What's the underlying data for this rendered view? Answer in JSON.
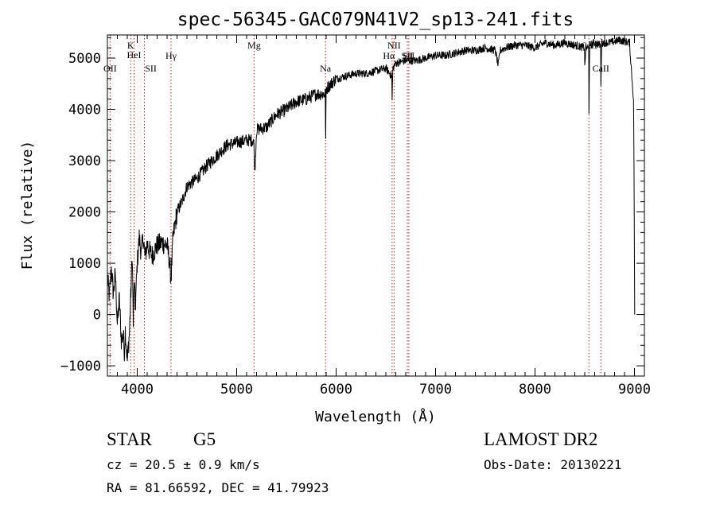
{
  "chart_data": {
    "type": "line",
    "title": "spec-56345-GAC079N41V2_sp13-241.fits",
    "xlabel": "Wavelength (Å)",
    "ylabel": "Flux (relative)",
    "xlim": [
      3700,
      9100
    ],
    "ylim": [
      -1200,
      5450
    ],
    "xticks": [
      4000,
      5000,
      6000,
      7000,
      8000,
      9000
    ],
    "yticks": [
      -1000,
      0,
      1000,
      2000,
      3000,
      4000,
      5000
    ],
    "spectrum_color": "#000000",
    "line_marker_color": "#b22222",
    "anchors": [
      [
        3700,
        700
      ],
      [
        3720,
        350
      ],
      [
        3740,
        900
      ],
      [
        3760,
        400
      ],
      [
        3780,
        800
      ],
      [
        3800,
        -200
      ],
      [
        3820,
        300
      ],
      [
        3840,
        -500
      ],
      [
        3860,
        -400
      ],
      [
        3870,
        -700
      ],
      [
        3880,
        -300
      ],
      [
        3900,
        -900
      ],
      [
        3920,
        -400
      ],
      [
        3940,
        600
      ],
      [
        3950,
        1200
      ],
      [
        3960,
        -200
      ],
      [
        3970,
        700
      ],
      [
        3980,
        100
      ],
      [
        4000,
        1000
      ],
      [
        4020,
        1500
      ],
      [
        4040,
        1200
      ],
      [
        4060,
        1500
      ],
      [
        4080,
        1100
      ],
      [
        4100,
        1400
      ],
      [
        4120,
        1250
      ],
      [
        4150,
        1150
      ],
      [
        4200,
        1350
      ],
      [
        4250,
        1400
      ],
      [
        4300,
        1350
      ],
      [
        4320,
        1100
      ],
      [
        4340,
        700
      ],
      [
        4360,
        1500
      ],
      [
        4400,
        2000
      ],
      [
        4450,
        2200
      ],
      [
        4500,
        2500
      ],
      [
        4600,
        2650
      ],
      [
        4700,
        2900
      ],
      [
        4800,
        3100
      ],
      [
        4900,
        3300
      ],
      [
        5000,
        3350
      ],
      [
        5100,
        3400
      ],
      [
        5170,
        3400
      ],
      [
        5183,
        2800
      ],
      [
        5200,
        3600
      ],
      [
        5300,
        3650
      ],
      [
        5400,
        3900
      ],
      [
        5500,
        4000
      ],
      [
        5600,
        4150
      ],
      [
        5700,
        4200
      ],
      [
        5800,
        4300
      ],
      [
        5890,
        4300
      ],
      [
        5895,
        3400
      ],
      [
        5900,
        4400
      ],
      [
        6000,
        4600
      ],
      [
        6100,
        4650
      ],
      [
        6200,
        4700
      ],
      [
        6300,
        4700
      ],
      [
        6400,
        4750
      ],
      [
        6500,
        4800
      ],
      [
        6560,
        4650
      ],
      [
        6563,
        4150
      ],
      [
        6570,
        4800
      ],
      [
        6600,
        4900
      ],
      [
        6700,
        4950
      ],
      [
        6800,
        4950
      ],
      [
        6900,
        5000
      ],
      [
        7000,
        5050
      ],
      [
        7100,
        5050
      ],
      [
        7200,
        5100
      ],
      [
        7300,
        5150
      ],
      [
        7400,
        5150
      ],
      [
        7500,
        5200
      ],
      [
        7600,
        5150
      ],
      [
        7630,
        4850
      ],
      [
        7650,
        5150
      ],
      [
        7700,
        5200
      ],
      [
        7800,
        5250
      ],
      [
        7900,
        5250
      ],
      [
        8000,
        5200
      ],
      [
        8100,
        5300
      ],
      [
        8200,
        5250
      ],
      [
        8300,
        5300
      ],
      [
        8400,
        5250
      ],
      [
        8498,
        5200
      ],
      [
        8500,
        4800
      ],
      [
        8510,
        5200
      ],
      [
        8540,
        5200
      ],
      [
        8542,
        3950
      ],
      [
        8550,
        5250
      ],
      [
        8600,
        5300
      ],
      [
        8660,
        5250
      ],
      [
        8662,
        4400
      ],
      [
        8670,
        5300
      ],
      [
        8750,
        5300
      ],
      [
        8850,
        5350
      ],
      [
        8950,
        5300
      ],
      [
        8990,
        4200
      ],
      [
        8995,
        3000
      ],
      [
        9000,
        1000
      ],
      [
        9002,
        0
      ]
    ],
    "lines": [
      {
        "label": "OII",
        "wavelength": 3727
      },
      {
        "label": "K",
        "wavelength": 3934
      },
      {
        "label": "HeI",
        "wavelength": 3968
      },
      {
        "label": "SII",
        "wavelength": 4072
      },
      {
        "label": "Hγ",
        "wavelength": 4340
      },
      {
        "label": "Mg",
        "wavelength": 5175
      },
      {
        "label": "Na",
        "wavelength": 5893
      },
      {
        "label": "NII",
        "wavelength": 6583
      },
      {
        "label": "Hα",
        "wavelength": 6563
      },
      {
        "label": "SII",
        "wavelength": 6716
      },
      {
        "label": "SII",
        "wavelength": 6731
      },
      {
        "label": "CaII",
        "wavelength": 8542
      },
      {
        "label": "CaII",
        "wavelength": 8662
      }
    ]
  },
  "info": {
    "object_class": "STAR",
    "subclass": "G5",
    "survey": "LAMOST DR2",
    "redshift": "cz = 20.5 ± 0.9 km/s",
    "obs_date": "Obs-Date: 20130221",
    "coords": "RA =  81.66592, DEC =  41.79923"
  }
}
